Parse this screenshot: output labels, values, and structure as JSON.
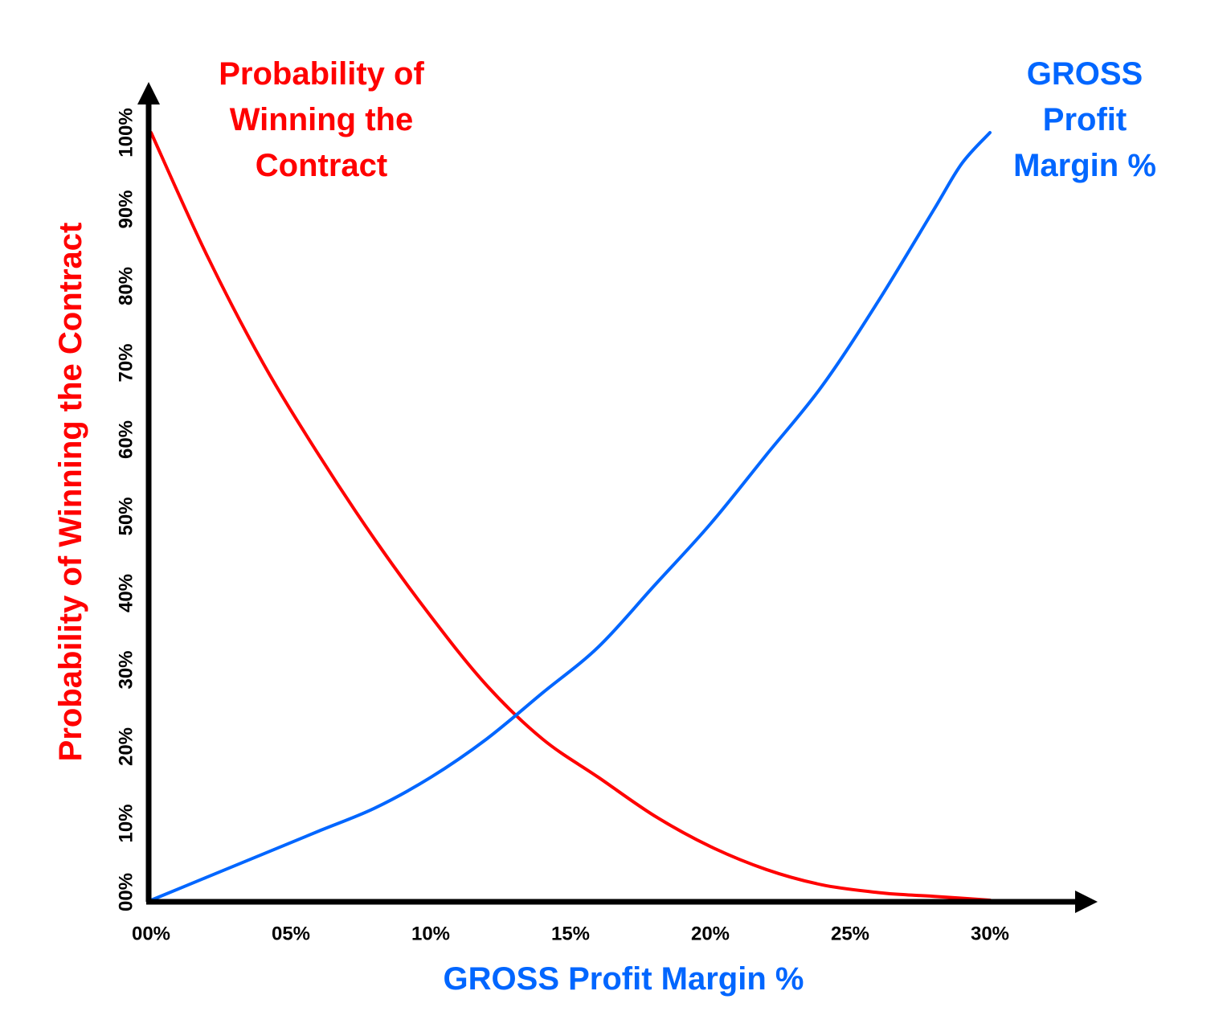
{
  "chart_data": {
    "type": "line",
    "title": "",
    "xlabel": "GROSS Profit Margin %",
    "ylabel": "Probability of Winning the Contract",
    "x_ticks": [
      "00%",
      "05%",
      "10%",
      "15%",
      "20%",
      "25%",
      "30%"
    ],
    "y_ticks": [
      "00%",
      "10%",
      "20%",
      "30%",
      "40%",
      "50%",
      "60%",
      "70%",
      "80%",
      "90%",
      "100%"
    ],
    "xlim": [
      0,
      30
    ],
    "ylim": [
      0,
      100
    ],
    "grid": false,
    "series": [
      {
        "name": "Probability of Winning the Contract",
        "annotation_lines": [
          "Probability of",
          "Winning the",
          "Contract"
        ],
        "color": "#ff0000",
        "x": [
          0,
          2,
          4,
          6,
          8,
          10,
          12,
          14,
          16,
          18,
          20,
          22,
          24,
          26,
          27,
          28,
          30
        ],
        "y": [
          100,
          84,
          70,
          58,
          47,
          37,
          28,
          21,
          16,
          11,
          7,
          4,
          2,
          1,
          0.7,
          0.5,
          0
        ]
      },
      {
        "name": "GROSS Profit Margin %",
        "annotation_lines": [
          "GROSS",
          "Profit",
          "Margin %"
        ],
        "color": "#0066ff",
        "x": [
          0,
          2,
          4,
          6,
          8,
          10,
          12,
          14,
          16,
          18,
          20,
          22,
          24,
          26,
          28,
          29,
          30
        ],
        "y": [
          0,
          3,
          6,
          9,
          12,
          16,
          21,
          27,
          33,
          41,
          49,
          58,
          67,
          78,
          90,
          96,
          100
        ]
      }
    ]
  }
}
